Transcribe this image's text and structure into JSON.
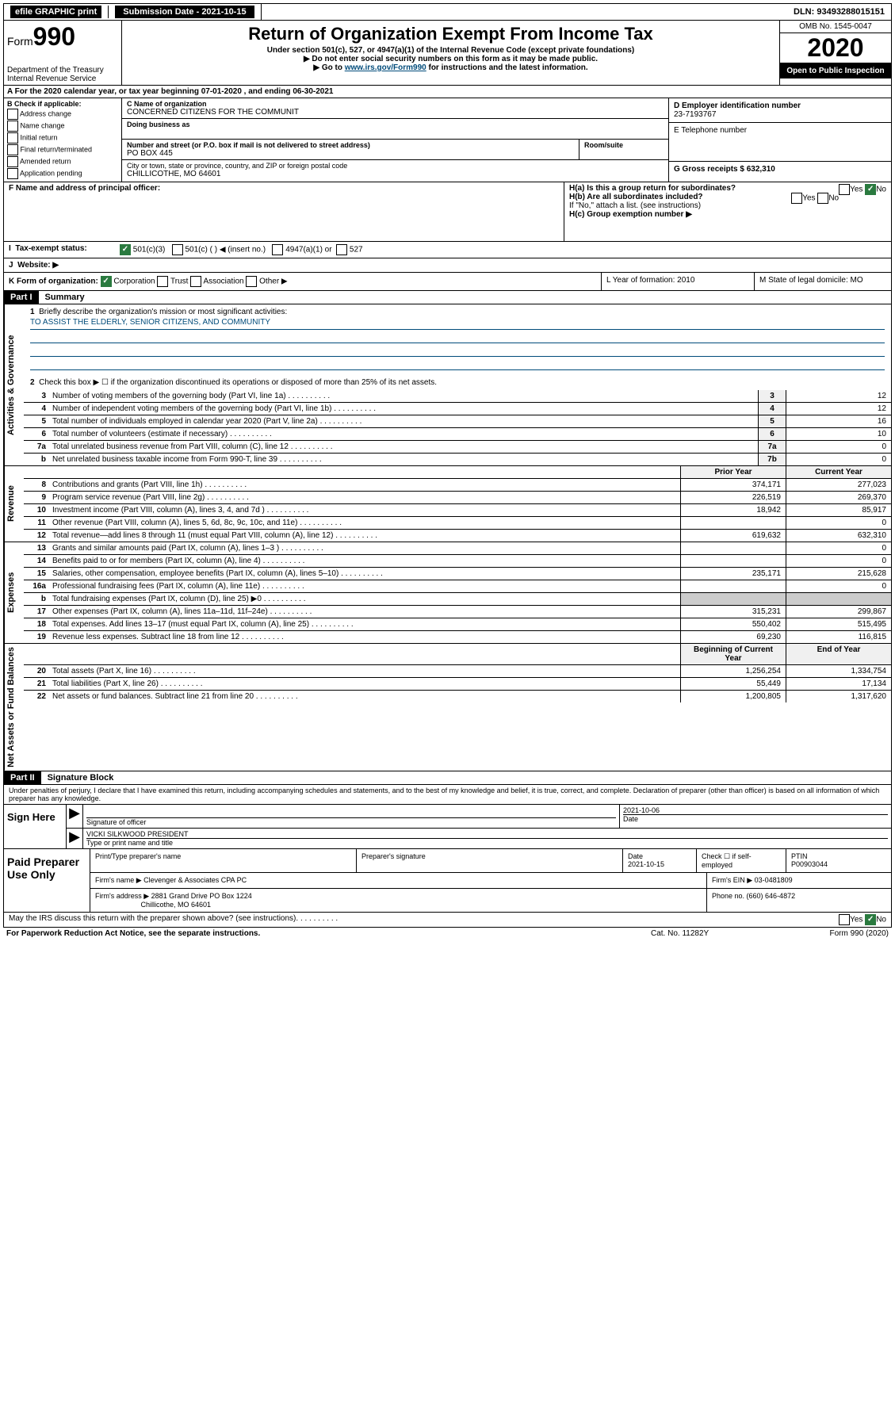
{
  "topbar": {
    "efile": "efile GRAPHIC print",
    "submission": "Submission Date - 2021-10-15",
    "dln": "DLN: 93493288015151"
  },
  "header": {
    "form_prefix": "Form",
    "form_num": "990",
    "dept": "Department of the Treasury",
    "irs": "Internal Revenue Service",
    "title": "Return of Organization Exempt From Income Tax",
    "subtitle": "Under section 501(c), 527, or 4947(a)(1) of the Internal Revenue Code (except private foundations)",
    "note1": "▶ Do not enter social security numbers on this form as it may be made public.",
    "note2_pre": "▶ Go to ",
    "note2_link": "www.irs.gov/Form990",
    "note2_post": " for instructions and the latest information.",
    "omb": "OMB No. 1545-0047",
    "year": "2020",
    "open": "Open to Public Inspection"
  },
  "section_a": "A For the 2020 calendar year, or tax year beginning 07-01-2020   , and ending 06-30-2021",
  "section_b": {
    "label": "B Check if applicable:",
    "opts": [
      "Address change",
      "Name change",
      "Initial return",
      "Final return/terminated",
      "Amended return",
      "Application pending"
    ]
  },
  "section_c": {
    "name_label": "C Name of organization",
    "name": "CONCERNED CITIZENS FOR THE COMMUNIT",
    "dba_label": "Doing business as",
    "addr_label": "Number and street (or P.O. box if mail is not delivered to street address)",
    "room_label": "Room/suite",
    "addr": "PO BOX 445",
    "city_label": "City or town, state or province, country, and ZIP or foreign postal code",
    "city": "CHILLICOTHE, MO  64601"
  },
  "section_d": {
    "ein_label": "D Employer identification number",
    "ein": "23-7193767",
    "phone_label": "E Telephone number",
    "gross_label": "G Gross receipts $ 632,310"
  },
  "section_f": {
    "label": "F  Name and address of principal officer:",
    "ha": "H(a)  Is this a group return for subordinates?",
    "hb": "H(b)  Are all subordinates included?",
    "hb_note": "If \"No,\" attach a list. (see instructions)",
    "hc": "H(c)  Group exemption number ▶"
  },
  "tax_status": {
    "label": "Tax-exempt status:",
    "opt1": "501(c)(3)",
    "opt2": "501(c) (  ) ◀ (insert no.)",
    "opt3": "4947(a)(1) or",
    "opt4": "527"
  },
  "website_label": "Website: ▶",
  "section_k": {
    "label": "K Form of organization:",
    "corp": "Corporation",
    "trust": "Trust",
    "assoc": "Association",
    "other": "Other ▶"
  },
  "section_l": {
    "label": "L Year of formation: 2010"
  },
  "section_m": {
    "label": "M State of legal domicile: MO"
  },
  "part1": {
    "header": "Part I",
    "title": "Summary",
    "q1": "Briefly describe the organization's mission or most significant activities:",
    "mission": "TO ASSIST THE ELDERLY, SENIOR CITIZENS, AND COMMUNITY",
    "q2": "Check this box ▶ ☐  if the organization discontinued its operations or disposed of more than 25% of its net assets."
  },
  "governance_rows": [
    {
      "num": "3",
      "label": "Number of voting members of the governing body (Part VI, line 1a)",
      "box": "3",
      "val": "12"
    },
    {
      "num": "4",
      "label": "Number of independent voting members of the governing body (Part VI, line 1b)",
      "box": "4",
      "val": "12"
    },
    {
      "num": "5",
      "label": "Total number of individuals employed in calendar year 2020 (Part V, line 2a)",
      "box": "5",
      "val": "16"
    },
    {
      "num": "6",
      "label": "Total number of volunteers (estimate if necessary)",
      "box": "6",
      "val": "10"
    },
    {
      "num": "7a",
      "label": "Total unrelated business revenue from Part VIII, column (C), line 12",
      "box": "7a",
      "val": "0"
    },
    {
      "num": "b",
      "label": "Net unrelated business taxable income from Form 990-T, line 39",
      "box": "7b",
      "val": "0"
    }
  ],
  "revenue_header": {
    "prior": "Prior Year",
    "current": "Current Year"
  },
  "revenue_rows": [
    {
      "num": "8",
      "label": "Contributions and grants (Part VIII, line 1h)",
      "prior": "374,171",
      "current": "277,023"
    },
    {
      "num": "9",
      "label": "Program service revenue (Part VIII, line 2g)",
      "prior": "226,519",
      "current": "269,370"
    },
    {
      "num": "10",
      "label": "Investment income (Part VIII, column (A), lines 3, 4, and 7d )",
      "prior": "18,942",
      "current": "85,917"
    },
    {
      "num": "11",
      "label": "Other revenue (Part VIII, column (A), lines 5, 6d, 8c, 9c, 10c, and 11e)",
      "prior": "",
      "current": "0"
    },
    {
      "num": "12",
      "label": "Total revenue—add lines 8 through 11 (must equal Part VIII, column (A), line 12)",
      "prior": "619,632",
      "current": "632,310"
    }
  ],
  "expense_rows": [
    {
      "num": "13",
      "label": "Grants and similar amounts paid (Part IX, column (A), lines 1–3 )",
      "prior": "",
      "current": "0"
    },
    {
      "num": "14",
      "label": "Benefits paid to or for members (Part IX, column (A), line 4)",
      "prior": "",
      "current": "0"
    },
    {
      "num": "15",
      "label": "Salaries, other compensation, employee benefits (Part IX, column (A), lines 5–10)",
      "prior": "235,171",
      "current": "215,628"
    },
    {
      "num": "16a",
      "label": "Professional fundraising fees (Part IX, column (A), line 11e)",
      "prior": "",
      "current": "0"
    },
    {
      "num": "b",
      "label": "Total fundraising expenses (Part IX, column (D), line 25) ▶0",
      "prior": "gray",
      "current": "gray"
    },
    {
      "num": "17",
      "label": "Other expenses (Part IX, column (A), lines 11a–11d, 11f–24e)",
      "prior": "315,231",
      "current": "299,867"
    },
    {
      "num": "18",
      "label": "Total expenses. Add lines 13–17 (must equal Part IX, column (A), line 25)",
      "prior": "550,402",
      "current": "515,495"
    },
    {
      "num": "19",
      "label": "Revenue less expenses. Subtract line 18 from line 12",
      "prior": "69,230",
      "current": "116,815"
    }
  ],
  "netassets_header": {
    "begin": "Beginning of Current Year",
    "end": "End of Year"
  },
  "netassets_rows": [
    {
      "num": "20",
      "label": "Total assets (Part X, line 16)",
      "begin": "1,256,254",
      "end": "1,334,754"
    },
    {
      "num": "21",
      "label": "Total liabilities (Part X, line 26)",
      "begin": "55,449",
      "end": "17,134"
    },
    {
      "num": "22",
      "label": "Net assets or fund balances. Subtract line 21 from line 20",
      "begin": "1,200,805",
      "end": "1,317,620"
    }
  ],
  "part2": {
    "header": "Part II",
    "title": "Signature Block",
    "perjury": "Under penalties of perjury, I declare that I have examined this return, including accompanying schedules and statements, and to the best of my knowledge and belief, it is true, correct, and complete. Declaration of preparer (other than officer) is based on all information of which preparer has any knowledge."
  },
  "sign": {
    "here": "Sign Here",
    "sig_label": "Signature of officer",
    "date": "2021-10-06",
    "date_label": "Date",
    "name": "VICKI SILKWOOD  PRESIDENT",
    "name_label": "Type or print name and title"
  },
  "paid": {
    "label": "Paid Preparer Use Only",
    "h1": "Print/Type preparer's name",
    "h2": "Preparer's signature",
    "h3": "Date",
    "date": "2021-10-15",
    "h4_pre": "Check ☐ if self-employed",
    "h5": "PTIN",
    "ptin": "P00903044",
    "firm_label": "Firm's name    ▶",
    "firm": "Clevenger & Associates CPA PC",
    "ein_label": "Firm's EIN ▶ 03-0481809",
    "addr_label": "Firm's address ▶",
    "addr1": "2881 Grand Drive PO Box 1224",
    "addr2": "Chillicothe, MO  64601",
    "phone": "Phone no. (660) 646-4872"
  },
  "discuss": "May the IRS discuss this return with the preparer shown above? (see instructions)",
  "footer": {
    "left": "For Paperwork Reduction Act Notice, see the separate instructions.",
    "mid": "Cat. No. 11282Y",
    "right": "Form 990 (2020)"
  },
  "vert_labels": {
    "gov": "Activities & Governance",
    "rev": "Revenue",
    "exp": "Expenses",
    "net": "Net Assets or Fund Balances"
  }
}
